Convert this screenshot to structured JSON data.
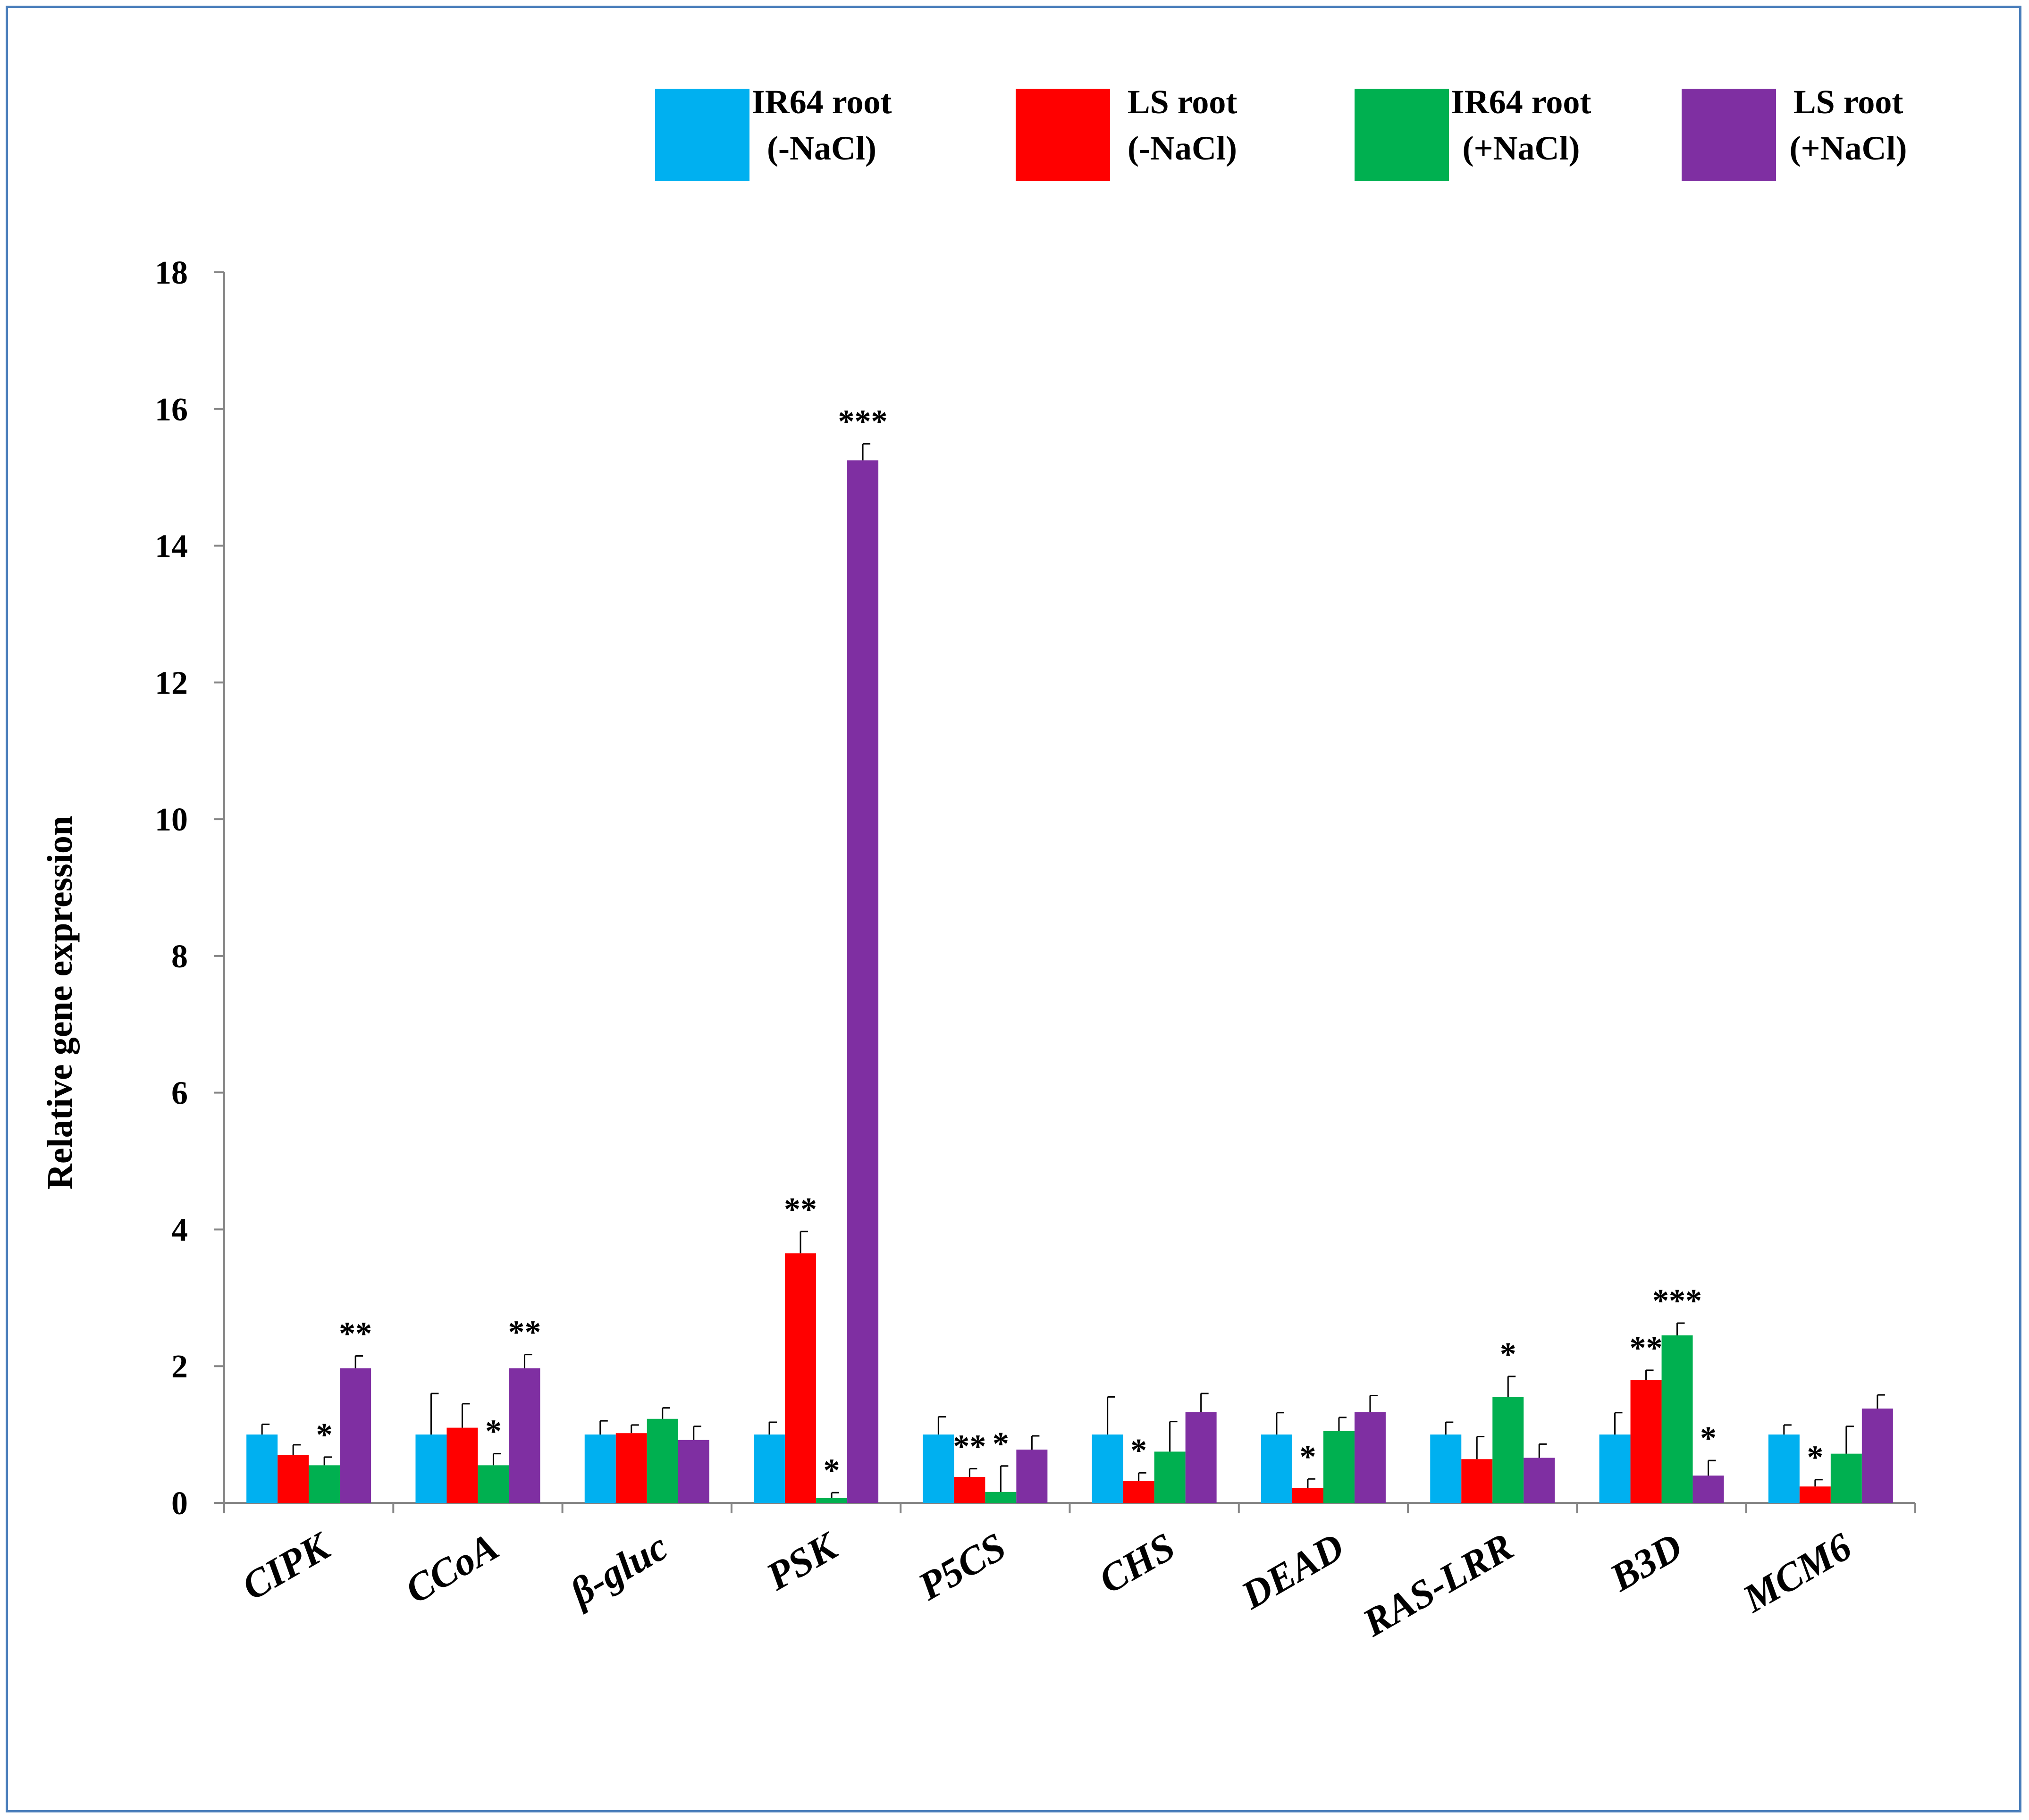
{
  "chart_data": {
    "type": "bar",
    "title": "",
    "xlabel": "",
    "ylabel": "Relative gene expression",
    "ylim": [
      0,
      18
    ],
    "yticks": [
      "0",
      "2",
      "4",
      "6",
      "8",
      "10",
      "12",
      "14",
      "16",
      "18"
    ],
    "grid": false,
    "legend_position": "top-right",
    "categories": [
      "CIPK",
      "CCoA",
      "β-gluc",
      "PSK",
      "P5CS",
      "CHS",
      "DEAD",
      "RAS-LRR",
      "B3D",
      "MCM6"
    ],
    "series": [
      {
        "name": "IR64 root (-NaCl)",
        "label_lines": [
          "IR64 root",
          "(-NaCl)"
        ],
        "color": "#00b0f0",
        "values": [
          1.0,
          1.0,
          1.0,
          1.0,
          1.0,
          1.0,
          1.0,
          1.0,
          1.0,
          1.0
        ],
        "errors": [
          0.15,
          0.6,
          0.2,
          0.18,
          0.26,
          0.55,
          0.32,
          0.18,
          0.32,
          0.14
        ],
        "significance": [
          "",
          "",
          "",
          "",
          "",
          "",
          "",
          "",
          "",
          ""
        ]
      },
      {
        "name": "LS root (-NaCl)",
        "label_lines": [
          "LS root",
          "(-NaCl)"
        ],
        "color": "#ff0000",
        "values": [
          0.7,
          1.1,
          1.02,
          3.65,
          0.38,
          0.32,
          0.22,
          0.64,
          1.8,
          0.24
        ],
        "errors": [
          0.15,
          0.35,
          0.12,
          0.32,
          0.12,
          0.12,
          0.13,
          0.33,
          0.14,
          0.1
        ],
        "significance": [
          "",
          "",
          "",
          "**",
          "**",
          "*",
          "*",
          "",
          "**",
          "*"
        ]
      },
      {
        "name": "IR64 root (+NaCl)",
        "label_lines": [
          "IR64 root",
          "(+NaCl)"
        ],
        "color": "#00b050",
        "values": [
          0.55,
          0.55,
          1.23,
          0.07,
          0.16,
          0.75,
          1.05,
          1.55,
          2.45,
          0.72
        ],
        "errors": [
          0.12,
          0.17,
          0.16,
          0.08,
          0.38,
          0.44,
          0.2,
          0.3,
          0.18,
          0.4
        ],
        "significance": [
          "*",
          "*",
          "",
          "*",
          "*",
          "",
          "",
          "*",
          "***",
          ""
        ]
      },
      {
        "name": "LS root (+NaCl)",
        "label_lines": [
          "LS root",
          "(+NaCl)"
        ],
        "color": "#7f2fa2",
        "values": [
          1.97,
          1.97,
          0.92,
          15.25,
          0.78,
          1.33,
          1.33,
          0.66,
          0.4,
          1.38
        ],
        "errors": [
          0.18,
          0.2,
          0.2,
          0.24,
          0.2,
          0.27,
          0.24,
          0.2,
          0.22,
          0.2
        ],
        "significance": [
          "**",
          "**",
          "",
          "***",
          "",
          "",
          "",
          "",
          "*",
          ""
        ]
      }
    ]
  }
}
